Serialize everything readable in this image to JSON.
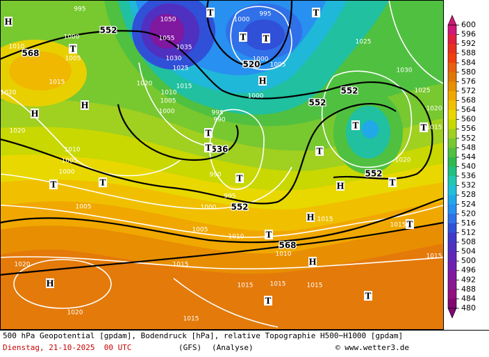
{
  "map": {
    "labels": [
      "995",
      "1000",
      "995",
      "1000",
      "1005",
      "1010",
      "1015",
      "1020",
      "1020",
      "1010",
      "1005",
      "1000",
      "1005",
      "1000",
      "995",
      "990",
      "1005",
      "1010",
      "1010",
      "1015",
      "1020",
      "1020",
      "1015",
      "1015",
      "1015",
      "1015",
      "1015",
      "1015",
      "1015",
      "1020",
      "1025",
      "1030",
      "1025",
      "1020",
      "1015",
      "1000",
      "1005",
      "1000",
      "1025",
      "1030",
      "1035",
      "1050",
      "1055",
      "1015",
      "1010",
      "1005",
      "1000",
      "995",
      "990",
      "1020",
      "552",
      "568",
      "520",
      "552",
      "552",
      "536",
      "552",
      "552",
      "568",
      "H",
      "T",
      "T",
      "T",
      "T",
      "T",
      "H",
      "H",
      "H",
      "T",
      "T",
      "T",
      "T",
      "T",
      "T",
      "T",
      "T",
      "H",
      "T",
      "H",
      "T",
      "T",
      "H",
      "H",
      "T",
      "T"
    ]
  },
  "colorbar": {
    "ticks": [
      600,
      596,
      592,
      588,
      584,
      580,
      576,
      572,
      568,
      564,
      560,
      556,
      552,
      548,
      544,
      540,
      536,
      532,
      528,
      524,
      520,
      516,
      512,
      508,
      504,
      500,
      496,
      492,
      488,
      484,
      480
    ],
    "colors": [
      "#d01878",
      "#e02040",
      "#e83020",
      "#f04010",
      "#e86010",
      "#e07808",
      "#e89000",
      "#f0a800",
      "#f0c000",
      "#e8d800",
      "#c8d800",
      "#a0d020",
      "#78c830",
      "#50c040",
      "#30b850",
      "#20c080",
      "#20c8b0",
      "#20c0d8",
      "#20a8e8",
      "#2890f0",
      "#3070e8",
      "#3050d8",
      "#4038c8",
      "#5030c0",
      "#6028b8",
      "#7020b0",
      "#8018a0",
      "#881890",
      "#901080",
      "#800870"
    ]
  },
  "footer": {
    "title": "500 hPa Geopotential [gpdam], Bodendruck [hPa], relative Topographie H500−H1000 [gpdam]",
    "date": "Dienstag, 21-10-2025  00 UTC",
    "model": "(GFS)",
    "run": "(Analyse)",
    "credit": "© www.wetter3.de"
  }
}
